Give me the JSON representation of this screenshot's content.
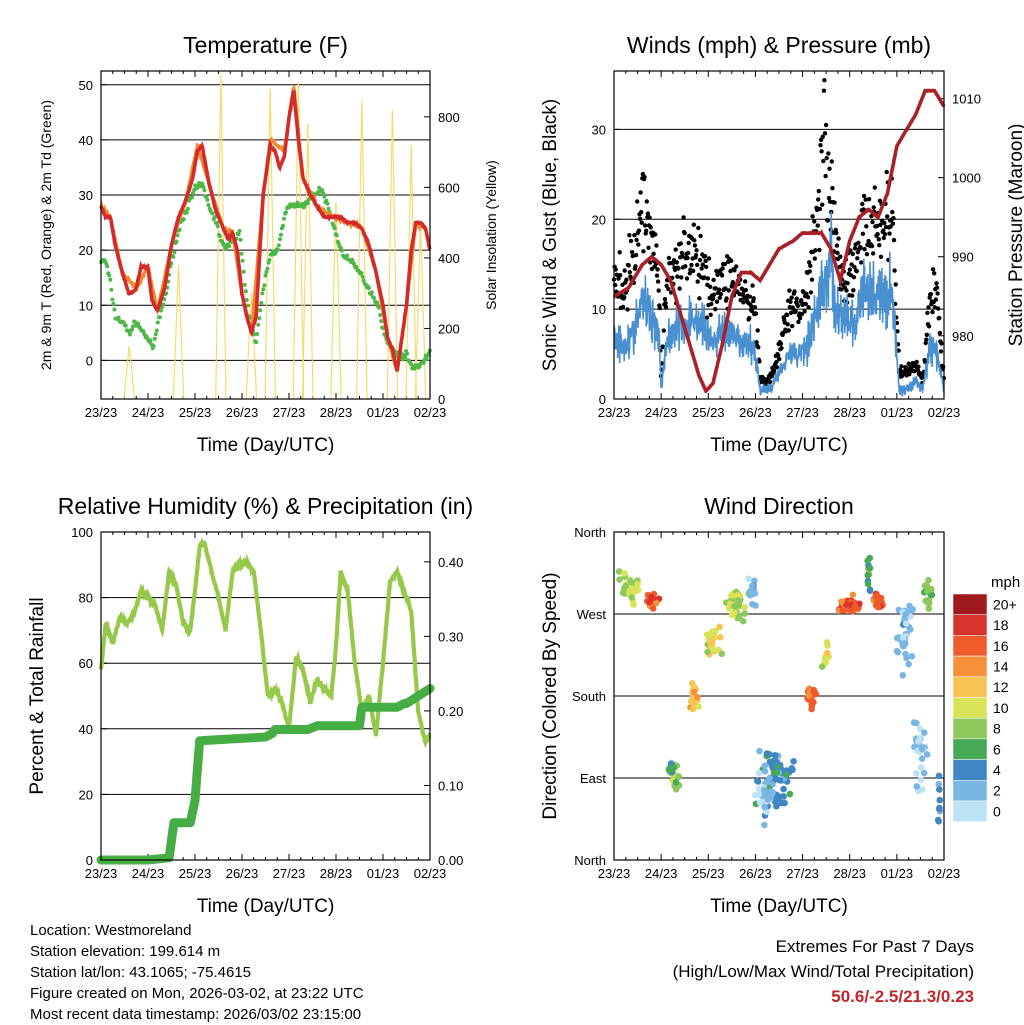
{
  "colors": {
    "red": "#d42a2a",
    "orange": "#f08a2c",
    "green": "#4db848",
    "yellow": "#f5dc6a",
    "black": "#000000",
    "blue": "#4a90d0",
    "maroon": "#a82028",
    "lightgreen": "#96c84a",
    "darkgreen": "#46ad44"
  },
  "x_ticks": [
    "23/23",
    "24/23",
    "25/23",
    "26/23",
    "27/23",
    "28/23",
    "01/23",
    "02/23"
  ],
  "chart_data": [
    {
      "type": "line",
      "id": "temp",
      "title": "Temperature (F)",
      "xlabel": "Time (Day/UTC)",
      "ylabel": "2m & 9m T (Red, Orange) & 2m Td (Green)",
      "ylabel_right": "Solar Insolation (Yellow)",
      "ylim": [
        -7,
        52.5
      ],
      "yticks": [
        0,
        10,
        20,
        30,
        40,
        50
      ],
      "ylim_right": [
        0,
        930
      ],
      "yticks_right": [
        0,
        200,
        400,
        600,
        800
      ],
      "xlim": [
        0,
        7
      ],
      "series": [
        {
          "name": "2m T",
          "color": "#d42a2a",
          "x": [
            0,
            0.1,
            0.2,
            0.3,
            0.45,
            0.6,
            0.75,
            0.85,
            1.0,
            1.08,
            1.2,
            1.35,
            1.5,
            1.65,
            1.8,
            1.95,
            2.05,
            2.15,
            2.3,
            2.45,
            2.6,
            2.7,
            2.8,
            2.9,
            3.0,
            3.1,
            3.2,
            3.3,
            3.45,
            3.6,
            3.7,
            3.8,
            3.9,
            4.0,
            4.1,
            4.2,
            4.3,
            4.45,
            4.6,
            4.75,
            4.95,
            5.1,
            5.25,
            5.4,
            5.55,
            5.7,
            5.85,
            6.0,
            6.1,
            6.2,
            6.3,
            6.4,
            6.5,
            6.6,
            6.7,
            6.8,
            6.9,
            7.0
          ],
          "y": [
            28,
            26,
            26,
            21,
            16,
            12,
            13,
            17,
            17,
            11,
            9,
            13,
            21,
            26,
            29,
            33,
            38,
            39,
            32,
            27,
            24,
            22,
            23,
            20,
            12,
            8,
            5,
            8,
            30,
            39,
            38,
            35,
            37,
            44,
            49,
            40,
            33,
            30,
            28,
            26,
            26,
            26,
            25,
            25,
            24,
            21,
            16,
            10,
            4,
            2,
            -2,
            4,
            10,
            20,
            25,
            25,
            24,
            20
          ]
        },
        {
          "name": "9m T",
          "color": "#f08a2c",
          "x": [
            0,
            0.2,
            0.45,
            0.75,
            1.0,
            1.2,
            1.5,
            1.8,
            2.05,
            2.3,
            2.6,
            2.8,
            3.0,
            3.2,
            3.45,
            3.6,
            3.9,
            4.1,
            4.3,
            4.6,
            4.95,
            5.25,
            5.55,
            5.85,
            6.1,
            6.3,
            6.5,
            6.7,
            6.9,
            7.0
          ],
          "y": [
            28,
            26,
            16,
            13,
            17,
            9,
            21,
            29,
            39,
            32,
            24,
            23,
            12,
            5,
            30,
            40,
            38,
            50,
            33,
            28,
            26,
            25,
            24,
            16,
            4,
            -2,
            10,
            25,
            24,
            20
          ]
        },
        {
          "name": "2m Td",
          "color": "#4db848",
          "x": [
            0,
            0.1,
            0.2,
            0.3,
            0.45,
            0.6,
            0.75,
            0.9,
            1.0,
            1.1,
            1.25,
            1.4,
            1.55,
            1.7,
            1.85,
            2.0,
            2.15,
            2.3,
            2.45,
            2.55,
            2.65,
            2.8,
            2.95,
            3.05,
            3.15,
            3.3,
            3.45,
            3.6,
            3.75,
            3.9,
            4.0,
            4.15,
            4.3,
            4.5,
            4.7,
            4.9,
            5.1,
            5.3,
            5.5,
            5.7,
            5.9,
            6.05,
            6.2,
            6.35,
            6.5,
            6.6,
            6.75,
            6.9,
            7.0
          ],
          "y": [
            18,
            18,
            14,
            8,
            7,
            5,
            7,
            5,
            4,
            2,
            8,
            13,
            20,
            25,
            28,
            31,
            32,
            28,
            25,
            22,
            20,
            22,
            23,
            15,
            8,
            3,
            13,
            19,
            20,
            26,
            28,
            28,
            28,
            30,
            31,
            26,
            20,
            18,
            16,
            13,
            10,
            4,
            2,
            1,
            1,
            -1,
            -1,
            0,
            2
          ]
        },
        {
          "name": "Solar Insolation",
          "color": "#f5dc6a",
          "axis": "right",
          "type": "spikes",
          "peaks": [
            {
              "x": 0.6,
              "y": 150
            },
            {
              "x": 1.65,
              "y": 380
            },
            {
              "x": 2.55,
              "y": 920
            },
            {
              "x": 3.2,
              "y": 300
            },
            {
              "x": 3.6,
              "y": 880
            },
            {
              "x": 4.2,
              "y": 900
            },
            {
              "x": 4.4,
              "y": 780
            },
            {
              "x": 5.0,
              "y": 560
            },
            {
              "x": 5.55,
              "y": 850
            },
            {
              "x": 6.2,
              "y": 820
            },
            {
              "x": 6.6,
              "y": 720
            },
            {
              "x": 6.8,
              "y": 500
            }
          ]
        }
      ]
    },
    {
      "type": "scatter",
      "id": "wind",
      "title": "Winds (mph) & Pressure (mb)",
      "xlabel": "Time (Day/UTC)",
      "ylabel": "Sonic Wind & Gust (Blue, Black)",
      "ylabel_right": "Station Pressure (Maroon)",
      "ylim": [
        0,
        36.5
      ],
      "yticks": [
        0,
        10,
        20,
        30
      ],
      "ylim_right": [
        972,
        1013.5
      ],
      "yticks_right": [
        980,
        990,
        1000,
        1010
      ],
      "xlim": [
        0,
        7
      ],
      "series": [
        {
          "name": "Sonic Wind",
          "color": "#4a90d0",
          "x": [
            0,
            0.2,
            0.4,
            0.6,
            0.8,
            0.95,
            1.0,
            1.1,
            1.3,
            1.5,
            1.7,
            1.9,
            2.1,
            2.3,
            2.5,
            2.7,
            2.9,
            3.0,
            3.1,
            3.3,
            3.5,
            3.7,
            3.9,
            4.1,
            4.3,
            4.5,
            4.6,
            4.7,
            4.9,
            5.1,
            5.3,
            5.5,
            5.7,
            5.9,
            6.05,
            6.2,
            6.4,
            6.55,
            6.7,
            6.85,
            7.0
          ],
          "y": [
            7,
            6,
            7,
            11,
            9,
            8,
            1,
            6,
            8,
            8,
            9,
            8,
            6,
            8,
            7,
            6,
            6,
            5,
            1,
            1,
            3,
            5,
            5,
            6,
            10,
            13,
            16,
            10,
            9,
            8,
            12,
            12,
            11,
            12,
            1,
            1,
            2,
            1,
            6,
            5,
            1
          ]
        },
        {
          "name": "Gust",
          "color": "#000000",
          "x": [
            0,
            0.2,
            0.4,
            0.6,
            0.8,
            0.95,
            1.0,
            1.1,
            1.3,
            1.5,
            1.7,
            1.9,
            2.1,
            2.3,
            2.5,
            2.7,
            2.9,
            3.0,
            3.1,
            3.3,
            3.5,
            3.7,
            3.9,
            4.1,
            4.3,
            4.45,
            4.6,
            4.7,
            4.9,
            5.1,
            5.3,
            5.5,
            5.7,
            5.9,
            6.05,
            6.2,
            6.4,
            6.55,
            6.7,
            6.85,
            7.0
          ],
          "y": [
            13,
            12,
            15,
            22,
            18,
            14,
            2,
            12,
            15,
            17,
            16,
            14,
            12,
            13,
            14,
            12,
            10,
            10,
            2,
            2,
            5,
            10,
            10,
            12,
            20,
            30,
            23,
            17,
            13,
            14,
            20,
            19,
            20,
            20,
            3,
            3,
            4,
            2,
            11,
            12,
            2
          ]
        },
        {
          "name": "Station Pressure",
          "color": "#a82028",
          "axis": "right",
          "type": "line",
          "x": [
            0,
            0.3,
            0.6,
            0.8,
            1.0,
            1.2,
            1.4,
            1.6,
            1.8,
            1.95,
            2.1,
            2.3,
            2.5,
            2.7,
            2.9,
            3.1,
            3.3,
            3.5,
            3.8,
            4.0,
            4.2,
            4.4,
            4.6,
            4.8,
            5.0,
            5.2,
            5.4,
            5.6,
            5.8,
            6.0,
            6.2,
            6.4,
            6.6,
            6.8,
            6.9,
            7.0
          ],
          "y": [
            985,
            986,
            989,
            990,
            989,
            987,
            983,
            979,
            975,
            973,
            974,
            979,
            985,
            988,
            988,
            987,
            989,
            991,
            992,
            993,
            993,
            993,
            991,
            987,
            992,
            995,
            996,
            995,
            998,
            1004,
            1006,
            1008,
            1011,
            1011,
            1010,
            1009
          ]
        }
      ]
    },
    {
      "type": "line",
      "id": "rh",
      "title": "Relative Humidity (%) & Precipitation (in)",
      "xlabel": "Time (Day/UTC)",
      "ylabel": "Percent & Total Rainfall",
      "ylim": [
        0,
        100
      ],
      "yticks": [
        0,
        20,
        40,
        60,
        80,
        100
      ],
      "ylim_right": [
        0,
        0.44
      ],
      "yticks_right": [
        "0.00",
        "0.10",
        "0.20",
        "0.30",
        "0.40"
      ],
      "xlim": [
        0,
        7
      ],
      "series": [
        {
          "name": "Relative Humidity",
          "color": "#96c84a",
          "x": [
            0,
            0.1,
            0.25,
            0.4,
            0.55,
            0.7,
            0.85,
            1.0,
            1.15,
            1.3,
            1.45,
            1.6,
            1.75,
            1.9,
            2.0,
            2.1,
            2.2,
            2.35,
            2.5,
            2.65,
            2.8,
            2.95,
            3.1,
            3.25,
            3.4,
            3.55,
            3.7,
            3.85,
            4.0,
            4.15,
            4.3,
            4.45,
            4.6,
            4.75,
            4.9,
            5.0,
            5.1,
            5.25,
            5.4,
            5.55,
            5.7,
            5.85,
            6.0,
            6.15,
            6.3,
            6.45,
            6.6,
            6.75,
            6.9,
            7.0
          ],
          "y": [
            58,
            72,
            66,
            74,
            72,
            75,
            82,
            80,
            78,
            70,
            88,
            84,
            72,
            70,
            82,
            96,
            97,
            88,
            80,
            70,
            88,
            90,
            91,
            88,
            70,
            50,
            52,
            48,
            40,
            62,
            58,
            48,
            55,
            52,
            50,
            65,
            88,
            82,
            60,
            45,
            50,
            38,
            60,
            85,
            88,
            82,
            76,
            45,
            36,
            38
          ]
        },
        {
          "name": "Total Rainfall",
          "color": "#46ad44",
          "axis": "right",
          "type": "step",
          "x": [
            0,
            1.0,
            1.45,
            1.55,
            1.9,
            2.0,
            2.05,
            2.1,
            3.5,
            3.65,
            3.7,
            4.4,
            4.6,
            5.0,
            5.5,
            5.55,
            6.3,
            6.45,
            6.5,
            6.75,
            7.0
          ],
          "y": [
            0,
            0,
            0.003,
            0.05,
            0.05,
            0.08,
            0.12,
            0.16,
            0.165,
            0.17,
            0.175,
            0.175,
            0.18,
            0.18,
            0.18,
            0.205,
            0.205,
            0.21,
            0.21,
            0.22,
            0.23
          ]
        }
      ]
    },
    {
      "type": "scatter",
      "id": "dir",
      "title": "Wind Direction",
      "xlabel": "Time (Day/UTC)",
      "ylabel": "Direction (Colored By Speed)",
      "ylim": [
        0,
        360
      ],
      "ytick_labels": [
        "North",
        "East",
        "South",
        "West",
        "North"
      ],
      "yticks": [
        0,
        90,
        180,
        270,
        360
      ],
      "xlim": [
        0,
        7
      ],
      "legend": {
        "title": "mph",
        "labels": [
          "20+",
          "18",
          "16",
          "14",
          "12",
          "10",
          "8",
          "6",
          "4",
          "2",
          "0"
        ],
        "colors": [
          "#9e1a1c",
          "#d8322c",
          "#ef5b2b",
          "#f5903b",
          "#f7c453",
          "#d9e359",
          "#8cc85c",
          "#45a956",
          "#3f86c2",
          "#7ab6e2",
          "#bde2f5"
        ]
      },
      "clusters": [
        {
          "x": 0.3,
          "y": 300,
          "spread_x": 0.3,
          "spread_y": 25,
          "n": 30,
          "speed": 9
        },
        {
          "x": 0.8,
          "y": 285,
          "spread_x": 0.2,
          "spread_y": 12,
          "n": 24,
          "speed": 16
        },
        {
          "x": 1.3,
          "y": 90,
          "spread_x": 0.15,
          "spread_y": 20,
          "n": 18,
          "speed": 8
        },
        {
          "x": 1.2,
          "y": 100,
          "spread_x": 0.1,
          "spread_y": 15,
          "n": 10,
          "speed": 5
        },
        {
          "x": 1.7,
          "y": 180,
          "spread_x": 0.15,
          "spread_y": 20,
          "n": 22,
          "speed": 12
        },
        {
          "x": 2.1,
          "y": 240,
          "spread_x": 0.2,
          "spread_y": 25,
          "n": 26,
          "speed": 10
        },
        {
          "x": 2.6,
          "y": 280,
          "spread_x": 0.3,
          "spread_y": 25,
          "n": 34,
          "speed": 9
        },
        {
          "x": 2.9,
          "y": 300,
          "spread_x": 0.15,
          "spread_y": 30,
          "n": 12,
          "speed": 2
        },
        {
          "x": 3.4,
          "y": 90,
          "spread_x": 0.5,
          "spread_y": 50,
          "n": 70,
          "speed": 4
        },
        {
          "x": 3.2,
          "y": 70,
          "spread_x": 0.3,
          "spread_y": 40,
          "n": 25,
          "speed": 1
        },
        {
          "x": 4.2,
          "y": 180,
          "spread_x": 0.15,
          "spread_y": 20,
          "n": 22,
          "speed": 16
        },
        {
          "x": 4.5,
          "y": 230,
          "spread_x": 0.1,
          "spread_y": 30,
          "n": 10,
          "speed": 10
        },
        {
          "x": 5.0,
          "y": 280,
          "spread_x": 0.3,
          "spread_y": 12,
          "n": 34,
          "speed": 16
        },
        {
          "x": 5.6,
          "y": 285,
          "spread_x": 0.2,
          "spread_y": 15,
          "n": 24,
          "speed": 16
        },
        {
          "x": 5.4,
          "y": 310,
          "spread_x": 0.1,
          "spread_y": 35,
          "n": 12,
          "speed": 6
        },
        {
          "x": 6.2,
          "y": 250,
          "spread_x": 0.3,
          "spread_y": 60,
          "n": 40,
          "speed": 2
        },
        {
          "x": 6.7,
          "y": 290,
          "spread_x": 0.15,
          "spread_y": 25,
          "n": 20,
          "speed": 7
        },
        {
          "x": 6.5,
          "y": 120,
          "spread_x": 0.2,
          "spread_y": 60,
          "n": 25,
          "speed": 1
        },
        {
          "x": 6.9,
          "y": 60,
          "spread_x": 0.05,
          "spread_y": 50,
          "n": 10,
          "speed": 3
        }
      ]
    }
  ],
  "info": {
    "location": "Location: Westmoreland",
    "elevation": "Station elevation: 199.614 m",
    "latlon": "Station lat/lon: 43.1065; -75.4615",
    "created": "Figure created on Mon, 2026-03-02, at 23:22 UTC",
    "recent": "Most recent data timestamp: 2026/03/02 23:15:00"
  },
  "extremes": {
    "heading": "Extremes For Past 7 Days",
    "subheading": "(High/Low/Max Wind/Total Precipitation)",
    "values": "50.6/-2.5/21.3/0.23"
  }
}
